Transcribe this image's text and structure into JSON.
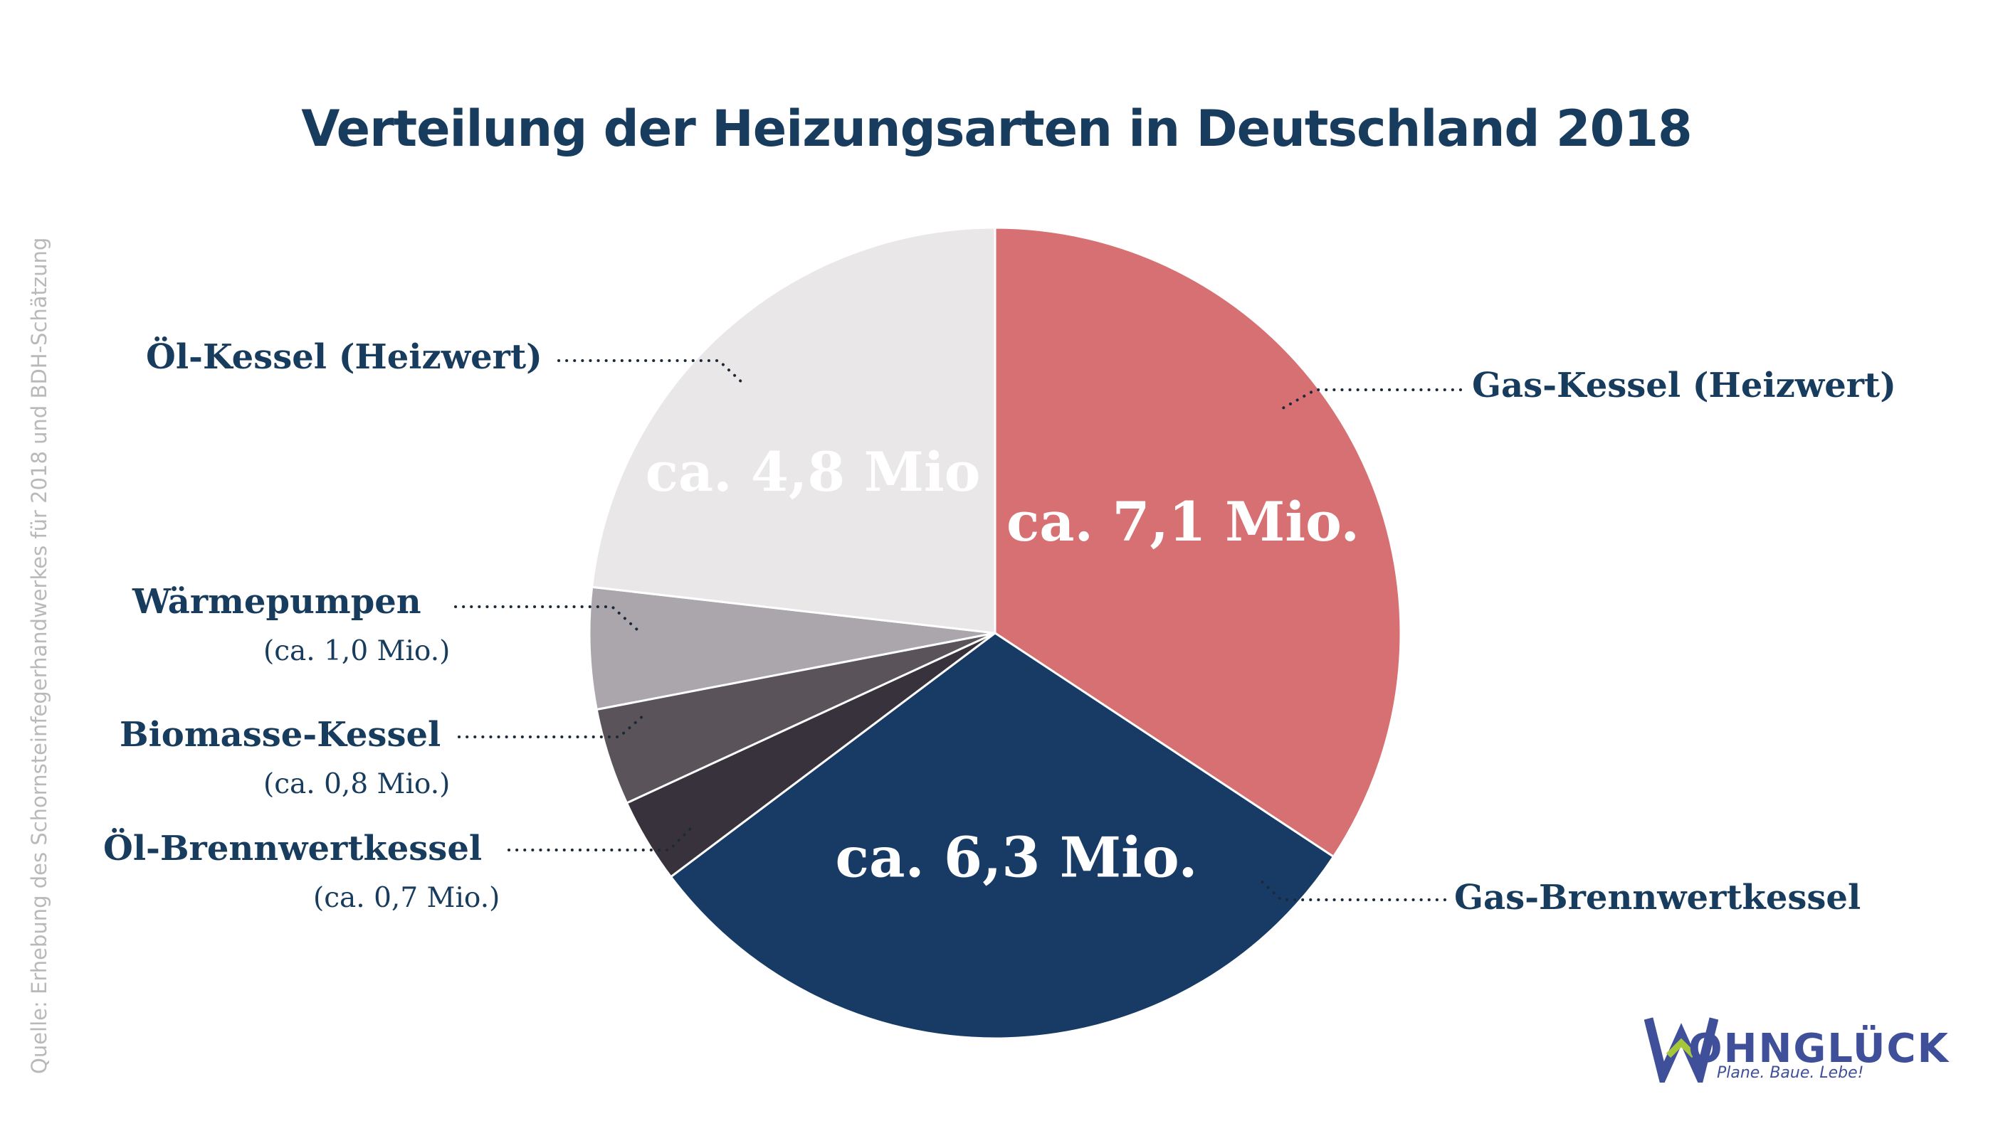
{
  "title": "Verteilung der Heizungsarten in Deutschland 2018",
  "source": "Quelle: Erhebung des Schornsteinfegerhandwerkes für 2018 und BDH-Schätzung",
  "logo": {
    "name": "OHNGLÜCK",
    "tagline": "Plane. Baue. Lebe!"
  },
  "chart_data": {
    "type": "pie",
    "unit": "Mio.",
    "slices": [
      {
        "label": "Gas-Kessel (Heizwert)",
        "value": 7.1,
        "value_label": "ca. 7,1 Mio.",
        "color": "#d77072"
      },
      {
        "label": "Gas-Brennwertkessel",
        "value": 6.3,
        "value_label": "ca. 6,3 Mio.",
        "color": "#173b65"
      },
      {
        "label": "Öl-Brennwertkessel",
        "value": 0.7,
        "value_label": "(ca. 0,7 Mio.)",
        "color": "#38323d"
      },
      {
        "label": "Biomasse-Kessel",
        "value": 0.8,
        "value_label": "(ca. 0,8 Mio.)",
        "color": "#5a5359"
      },
      {
        "label": "Wärmepumpen",
        "value": 1.0,
        "value_label": "(ca. 1,0 Mio.)",
        "color": "#aaa6ab"
      },
      {
        "label": "Öl-Kessel (Heizwert)",
        "value": 4.8,
        "value_label": "ca. 4,8 Mio",
        "color": "#e9e7e7"
      }
    ]
  },
  "colors": {
    "title": "#183c5e",
    "label": "#183c5e",
    "source": "#b9b9b9",
    "logo": "#3f4f9a",
    "logo_accent": "#a6c73a"
  }
}
